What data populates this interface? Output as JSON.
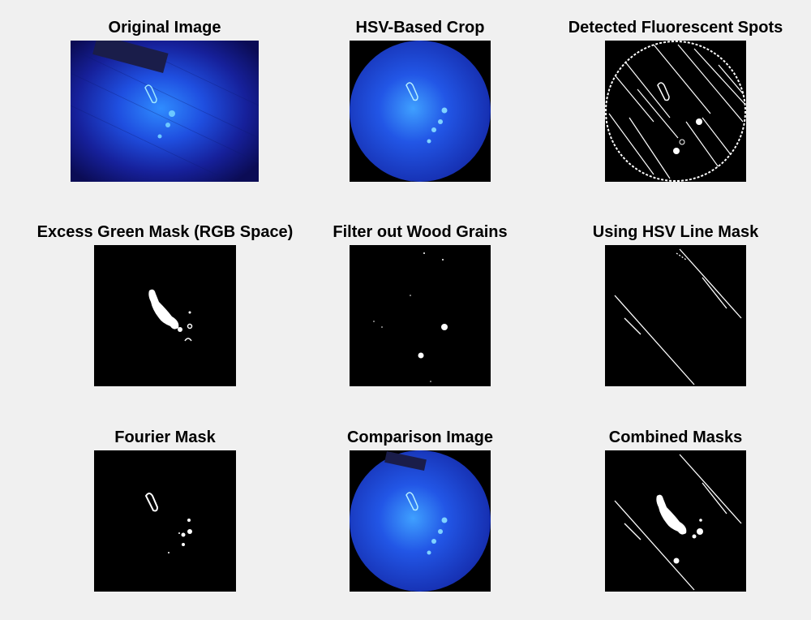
{
  "panels": [
    {
      "title": "Original Image"
    },
    {
      "title": "HSV-Based Crop"
    },
    {
      "title": "Detected Fluorescent Spots"
    },
    {
      "title": "Excess Green Mask (RGB Space)"
    },
    {
      "title": "Filter out Wood Grains"
    },
    {
      "title": "Using HSV Line Mask"
    },
    {
      "title": "Fourier Mask"
    },
    {
      "title": "Comparison Image"
    },
    {
      "title": "Combined Masks"
    }
  ]
}
